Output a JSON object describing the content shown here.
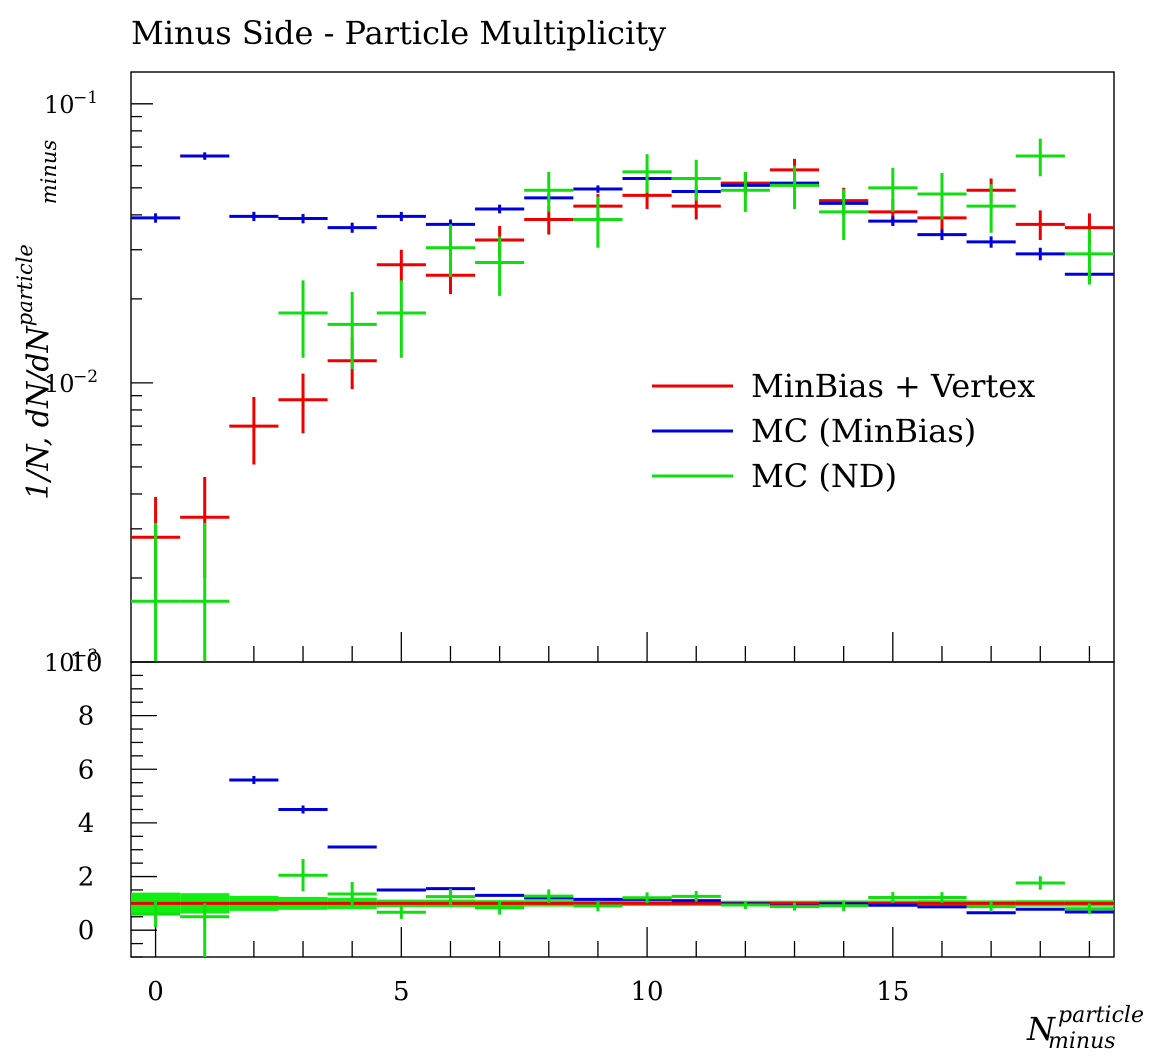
{
  "chart_data": [
    {
      "type": "scatter",
      "panel": "main",
      "title": "Minus Side - Particle Multiplicity",
      "ylabel_base": "1/N, dN/dN",
      "ylabel_sup": "particle",
      "ylabel_sub": "minus",
      "yscale": "log",
      "ylim": [
        0.001,
        0.13
      ],
      "xlim": [
        -0.5,
        19.5
      ],
      "ytick_labels": [
        {
          "base": "10",
          "exp": "−1",
          "value": 0.1
        },
        {
          "base": "10",
          "exp": "−2",
          "value": 0.01
        },
        {
          "base": "10",
          "exp": "−3",
          "value": 0.001
        }
      ],
      "legend_position": "center-right",
      "series": [
        {
          "name": "MinBias + Vertex",
          "color": "#ee0000",
          "points": [
            {
              "x": 0,
              "y": 0.0028,
              "err": 0.0011
            },
            {
              "x": 1,
              "y": 0.0033,
              "err": 0.0013
            },
            {
              "x": 2,
              "y": 0.007,
              "err": 0.0019
            },
            {
              "x": 3,
              "y": 0.0087,
              "err": 0.0021
            },
            {
              "x": 4,
              "y": 0.012,
              "err": 0.0025
            },
            {
              "x": 5,
              "y": 0.0265,
              "err": 0.0035
            },
            {
              "x": 6,
              "y": 0.0243,
              "err": 0.0035
            },
            {
              "x": 7,
              "y": 0.0325,
              "err": 0.004
            },
            {
              "x": 8,
              "y": 0.0385,
              "err": 0.0045
            },
            {
              "x": 9,
              "y": 0.043,
              "err": 0.0045
            },
            {
              "x": 10,
              "y": 0.047,
              "err": 0.005
            },
            {
              "x": 11,
              "y": 0.043,
              "err": 0.0045
            },
            {
              "x": 12,
              "y": 0.052,
              "err": 0.005
            },
            {
              "x": 13,
              "y": 0.058,
              "err": 0.0055
            },
            {
              "x": 14,
              "y": 0.045,
              "err": 0.005
            },
            {
              "x": 15,
              "y": 0.041,
              "err": 0.0045
            },
            {
              "x": 16,
              "y": 0.039,
              "err": 0.0045
            },
            {
              "x": 17,
              "y": 0.049,
              "err": 0.005
            },
            {
              "x": 18,
              "y": 0.037,
              "err": 0.0045
            },
            {
              "x": 19,
              "y": 0.036,
              "err": 0.0045
            }
          ]
        },
        {
          "name": "MC (MinBias)",
          "color": "#0000dd",
          "points": [
            {
              "x": 0,
              "y": 0.039,
              "err": 0.0015
            },
            {
              "x": 1,
              "y": 0.065,
              "err": 0.002
            },
            {
              "x": 2,
              "y": 0.0395,
              "err": 0.0015
            },
            {
              "x": 3,
              "y": 0.0388,
              "err": 0.0015
            },
            {
              "x": 4,
              "y": 0.036,
              "err": 0.0015
            },
            {
              "x": 5,
              "y": 0.0395,
              "err": 0.0015
            },
            {
              "x": 6,
              "y": 0.037,
              "err": 0.0015
            },
            {
              "x": 7,
              "y": 0.042,
              "err": 0.0015
            },
            {
              "x": 8,
              "y": 0.046,
              "err": 0.0015
            },
            {
              "x": 9,
              "y": 0.0495,
              "err": 0.0015
            },
            {
              "x": 10,
              "y": 0.054,
              "err": 0.0015
            },
            {
              "x": 11,
              "y": 0.0485,
              "err": 0.0015
            },
            {
              "x": 12,
              "y": 0.051,
              "err": 0.0015
            },
            {
              "x": 13,
              "y": 0.052,
              "err": 0.0015
            },
            {
              "x": 14,
              "y": 0.044,
              "err": 0.0015
            },
            {
              "x": 15,
              "y": 0.038,
              "err": 0.0015
            },
            {
              "x": 16,
              "y": 0.034,
              "err": 0.0015
            },
            {
              "x": 17,
              "y": 0.032,
              "err": 0.0015
            },
            {
              "x": 18,
              "y": 0.029,
              "err": 0.0015
            },
            {
              "x": 19,
              "y": 0.0245,
              "err": 0.0012
            }
          ]
        },
        {
          "name": "MC (ND)",
          "color": "#11dd11",
          "points": [
            {
              "x": 0,
              "y": 0.00165,
              "err": 0.0015
            },
            {
              "x": 1,
              "y": 0.00165,
              "err": 0.0015
            },
            {
              "x": 3,
              "y": 0.0178,
              "err": 0.0055
            },
            {
              "x": 4,
              "y": 0.0162,
              "err": 0.005
            },
            {
              "x": 5,
              "y": 0.0178,
              "err": 0.0055
            },
            {
              "x": 6,
              "y": 0.0305,
              "err": 0.0065
            },
            {
              "x": 7,
              "y": 0.027,
              "err": 0.0065
            },
            {
              "x": 8,
              "y": 0.049,
              "err": 0.008
            },
            {
              "x": 9,
              "y": 0.0385,
              "err": 0.008
            },
            {
              "x": 10,
              "y": 0.057,
              "err": 0.009
            },
            {
              "x": 11,
              "y": 0.054,
              "err": 0.009
            },
            {
              "x": 12,
              "y": 0.049,
              "err": 0.008
            },
            {
              "x": 13,
              "y": 0.051,
              "err": 0.009
            },
            {
              "x": 14,
              "y": 0.041,
              "err": 0.0085
            },
            {
              "x": 15,
              "y": 0.05,
              "err": 0.009
            },
            {
              "x": 16,
              "y": 0.0475,
              "err": 0.009
            },
            {
              "x": 17,
              "y": 0.043,
              "err": 0.0085
            },
            {
              "x": 18,
              "y": 0.065,
              "err": 0.01
            },
            {
              "x": 19,
              "y": 0.029,
              "err": 0.0065
            }
          ]
        }
      ]
    },
    {
      "type": "scatter",
      "panel": "ratio",
      "xlabel_base": "N",
      "xlabel_sup": "particle",
      "xlabel_sub": "minus",
      "ylim": [
        -1,
        10
      ],
      "xlim": [
        -0.5,
        19.5
      ],
      "yticks": [
        0,
        2,
        4,
        6,
        8,
        10
      ],
      "xticks": [
        0,
        5,
        10,
        15
      ],
      "band": {
        "color": "#11ee11",
        "values": [
          {
            "x": 0,
            "lo": 0.6,
            "hi": 1.4
          },
          {
            "x": 1,
            "lo": 0.62,
            "hi": 1.38
          },
          {
            "x": 2,
            "lo": 0.72,
            "hi": 1.28
          },
          {
            "x": 3,
            "lo": 0.76,
            "hi": 1.24
          },
          {
            "x": 4,
            "lo": 0.79,
            "hi": 1.21
          },
          {
            "x": 5,
            "lo": 0.86,
            "hi": 1.14
          },
          {
            "x": 6,
            "lo": 0.86,
            "hi": 1.14
          },
          {
            "x": 7,
            "lo": 0.88,
            "hi": 1.12
          },
          {
            "x": 8,
            "lo": 0.88,
            "hi": 1.12
          },
          {
            "x": 9,
            "lo": 0.9,
            "hi": 1.1
          },
          {
            "x": 10,
            "lo": 0.9,
            "hi": 1.1
          },
          {
            "x": 11,
            "lo": 0.9,
            "hi": 1.1
          },
          {
            "x": 12,
            "lo": 0.9,
            "hi": 1.1
          },
          {
            "x": 13,
            "lo": 0.9,
            "hi": 1.1
          },
          {
            "x": 14,
            "lo": 0.89,
            "hi": 1.11
          },
          {
            "x": 15,
            "lo": 0.89,
            "hi": 1.11
          },
          {
            "x": 16,
            "lo": 0.88,
            "hi": 1.12
          },
          {
            "x": 17,
            "lo": 0.89,
            "hi": 1.11
          },
          {
            "x": 18,
            "lo": 0.88,
            "hi": 1.12
          },
          {
            "x": 19,
            "lo": 0.88,
            "hi": 1.12
          }
        ]
      },
      "series": [
        {
          "name": "MinBias + Vertex",
          "color": "#ee0000",
          "points": [
            {
              "x": 0,
              "y": 1.0,
              "err": 0.0
            },
            {
              "x": 1,
              "y": 1.0,
              "err": 0.0
            },
            {
              "x": 2,
              "y": 1.0,
              "err": 0.0
            },
            {
              "x": 3,
              "y": 1.0,
              "err": 0.0
            },
            {
              "x": 4,
              "y": 1.0,
              "err": 0.0
            },
            {
              "x": 5,
              "y": 1.0,
              "err": 0.0
            },
            {
              "x": 6,
              "y": 1.0,
              "err": 0.0
            },
            {
              "x": 7,
              "y": 1.0,
              "err": 0.0
            },
            {
              "x": 8,
              "y": 1.0,
              "err": 0.0
            },
            {
              "x": 9,
              "y": 1.0,
              "err": 0.0
            },
            {
              "x": 10,
              "y": 1.0,
              "err": 0.0
            },
            {
              "x": 11,
              "y": 1.0,
              "err": 0.0
            },
            {
              "x": 12,
              "y": 1.0,
              "err": 0.0
            },
            {
              "x": 13,
              "y": 1.0,
              "err": 0.0
            },
            {
              "x": 14,
              "y": 1.0,
              "err": 0.0
            },
            {
              "x": 15,
              "y": 1.0,
              "err": 0.0
            },
            {
              "x": 16,
              "y": 1.0,
              "err": 0.0
            },
            {
              "x": 17,
              "y": 1.0,
              "err": 0.0
            },
            {
              "x": 18,
              "y": 1.0,
              "err": 0.0
            },
            {
              "x": 19,
              "y": 1.0,
              "err": 0.0
            }
          ]
        },
        {
          "name": "MC (MinBias)",
          "color": "#0000dd",
          "points": [
            {
              "x": 2,
              "y": 5.6,
              "err": 0.15
            },
            {
              "x": 3,
              "y": 4.5,
              "err": 0.15
            },
            {
              "x": 4,
              "y": 3.1,
              "err": 0.0
            },
            {
              "x": 5,
              "y": 1.5,
              "err": 0.0
            },
            {
              "x": 6,
              "y": 1.55,
              "err": 0.0
            },
            {
              "x": 7,
              "y": 1.3,
              "err": 0.0
            },
            {
              "x": 8,
              "y": 1.2,
              "err": 0.0
            },
            {
              "x": 9,
              "y": 1.15,
              "err": 0.0
            },
            {
              "x": 10,
              "y": 1.15,
              "err": 0.0
            },
            {
              "x": 11,
              "y": 1.1,
              "err": 0.0
            },
            {
              "x": 12,
              "y": 0.98,
              "err": 0.0
            },
            {
              "x": 13,
              "y": 0.9,
              "err": 0.0
            },
            {
              "x": 14,
              "y": 0.98,
              "err": 0.0
            },
            {
              "x": 15,
              "y": 0.93,
              "err": 0.0
            },
            {
              "x": 16,
              "y": 0.87,
              "err": 0.0
            },
            {
              "x": 17,
              "y": 0.65,
              "err": 0.0
            },
            {
              "x": 18,
              "y": 0.78,
              "err": 0.0
            },
            {
              "x": 19,
              "y": 0.68,
              "err": 0.0
            }
          ]
        },
        {
          "name": "MC (ND)",
          "color": "#11dd11",
          "points": [
            {
              "x": 0,
              "y": 0.6,
              "err": 0.5
            },
            {
              "x": 1,
              "y": 0.5,
              "err": 0.5
            },
            {
              "x": 3,
              "y": 2.05,
              "err": 0.6
            },
            {
              "x": 4,
              "y": 1.35,
              "err": 0.45
            },
            {
              "x": 5,
              "y": 0.67,
              "err": 0.25
            },
            {
              "x": 6,
              "y": 1.25,
              "err": 0.3
            },
            {
              "x": 7,
              "y": 0.83,
              "err": 0.25
            },
            {
              "x": 8,
              "y": 1.27,
              "err": 0.25
            },
            {
              "x": 9,
              "y": 0.9,
              "err": 0.2
            },
            {
              "x": 10,
              "y": 1.21,
              "err": 0.2
            },
            {
              "x": 11,
              "y": 1.26,
              "err": 0.2
            },
            {
              "x": 12,
              "y": 0.94,
              "err": 0.15
            },
            {
              "x": 13,
              "y": 0.88,
              "err": 0.15
            },
            {
              "x": 14,
              "y": 0.91,
              "err": 0.2
            },
            {
              "x": 15,
              "y": 1.22,
              "err": 0.2
            },
            {
              "x": 16,
              "y": 1.22,
              "err": 0.2
            },
            {
              "x": 17,
              "y": 0.88,
              "err": 0.2
            },
            {
              "x": 18,
              "y": 1.76,
              "err": 0.25
            },
            {
              "x": 19,
              "y": 0.8,
              "err": 0.2
            }
          ]
        }
      ]
    }
  ]
}
